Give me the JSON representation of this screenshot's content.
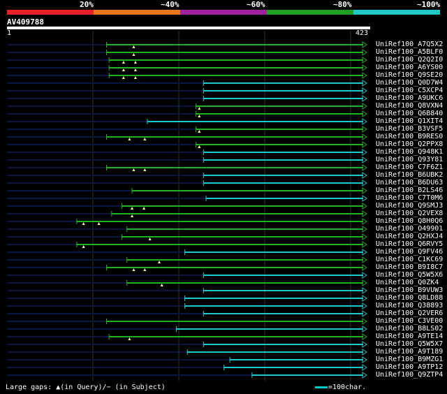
{
  "legend": [
    {
      "label": "20%",
      "color": "#e8202a"
    },
    {
      "label": "~40%",
      "color": "#e87820"
    },
    {
      "label": "~60%",
      "color": "#a020a0"
    },
    {
      "label": "~80%",
      "color": "#20a020"
    },
    {
      "label": "~100%",
      "color": "#20c8c8"
    }
  ],
  "query": {
    "name": "AV409788",
    "start": "1",
    "end": "423",
    "length": 423
  },
  "colors": {
    "green": "#1fb31f",
    "cyan": "#1fc8c8",
    "dark": "#0a1540",
    "grid": "#333333",
    "marker": "#ffffa0"
  },
  "hits": [
    {
      "name": "UniRef100_A7Q5X2",
      "start": 118,
      "color": "green",
      "markers": [
        150
      ]
    },
    {
      "name": "UniRef100_A5BLF0",
      "start": 118,
      "color": "green",
      "markers": [
        150
      ]
    },
    {
      "name": "UniRef100_Q2Q2I0",
      "start": 121,
      "color": "green",
      "markers": [
        138,
        152
      ]
    },
    {
      "name": "UniRef100_A6YS00",
      "start": 121,
      "color": "green",
      "markers": [
        138,
        152
      ]
    },
    {
      "name": "UniRef100_Q9SE20",
      "start": 121,
      "color": "green",
      "markers": [
        138,
        152
      ]
    },
    {
      "name": "UniRef100_Q0D7W4",
      "start": 232,
      "color": "cyan",
      "markers": []
    },
    {
      "name": "UniRef100_C5XCP4",
      "start": 232,
      "color": "cyan",
      "markers": []
    },
    {
      "name": "UniRef100_A9UKC6",
      "start": 232,
      "color": "cyan",
      "markers": []
    },
    {
      "name": "UniRef100_Q8VXN4",
      "start": 223,
      "color": "green",
      "markers": [
        227
      ]
    },
    {
      "name": "UniRef100_Q6B840",
      "start": 223,
      "color": "green",
      "markers": [
        227
      ]
    },
    {
      "name": "UniRef100_Q1XIT4",
      "start": 166,
      "color": "cyan",
      "markers": []
    },
    {
      "name": "UniRef100_B3VSF5",
      "start": 223,
      "color": "green",
      "markers": [
        227
      ]
    },
    {
      "name": "UniRef100_B9RES0",
      "start": 118,
      "color": "green",
      "markers": [
        145,
        163
      ]
    },
    {
      "name": "UniRef100_Q2PPX8",
      "start": 223,
      "color": "green",
      "markers": [
        227
      ]
    },
    {
      "name": "UniRef100_Q948K1",
      "start": 232,
      "color": "cyan",
      "markers": []
    },
    {
      "name": "UniRef100_Q93Y81",
      "start": 232,
      "color": "cyan",
      "markers": []
    },
    {
      "name": "UniRef100_C7F6Z1",
      "start": 118,
      "color": "green",
      "markers": [
        150,
        163
      ]
    },
    {
      "name": "UniRef100_B6UBK2",
      "start": 232,
      "color": "cyan",
      "markers": []
    },
    {
      "name": "UniRef100_B6DU63",
      "start": 232,
      "color": "cyan",
      "markers": []
    },
    {
      "name": "UniRef100_B2LS46",
      "start": 148,
      "color": "green",
      "markers": []
    },
    {
      "name": "UniRef100_C7T0M6",
      "start": 235,
      "color": "cyan",
      "markers": []
    },
    {
      "name": "UniRef100_Q9SMJ3",
      "start": 136,
      "color": "green",
      "markers": [
        148,
        162
      ]
    },
    {
      "name": "UniRef100_Q2VEX8",
      "start": 124,
      "color": "green",
      "markers": [
        148
      ]
    },
    {
      "name": "UniRef100_Q8H0Q6",
      "start": 83,
      "color": "green",
      "markers": [
        91,
        109
      ]
    },
    {
      "name": "UniRef100_O49901",
      "start": 142,
      "color": "green",
      "markers": []
    },
    {
      "name": "UniRef100_Q2HXJ4",
      "start": 136,
      "color": "green",
      "markers": [
        169
      ]
    },
    {
      "name": "UniRef100_Q6RVY5",
      "start": 83,
      "color": "green",
      "markers": [
        91
      ]
    },
    {
      "name": "UniRef100_Q9FV46",
      "start": 210,
      "color": "cyan",
      "markers": []
    },
    {
      "name": "UniRef100_C1KC69",
      "start": 142,
      "color": "green",
      "markers": [
        180
      ]
    },
    {
      "name": "UniRef100_B9I8C7",
      "start": 118,
      "color": "green",
      "markers": [
        150,
        163
      ]
    },
    {
      "name": "UniRef100_Q5W5X6",
      "start": 232,
      "color": "cyan",
      "markers": []
    },
    {
      "name": "UniRef100_Q0ZK4",
      "start": 142,
      "color": "green",
      "markers": [
        183
      ]
    },
    {
      "name": "UniRef100_B9VUW3",
      "start": 232,
      "color": "cyan",
      "markers": []
    },
    {
      "name": "UniRef100_Q8LD88",
      "start": 210,
      "color": "cyan",
      "markers": []
    },
    {
      "name": "UniRef100_Q38893",
      "start": 210,
      "color": "cyan",
      "markers": []
    },
    {
      "name": "UniRef100_Q2VER6",
      "start": 232,
      "color": "cyan",
      "markers": []
    },
    {
      "name": "UniRef100_C3VE00",
      "start": 118,
      "color": "green",
      "markers": []
    },
    {
      "name": "UniRef100_B8LS02",
      "start": 200,
      "color": "cyan",
      "markers": []
    },
    {
      "name": "UniRef100_A9TE14",
      "start": 121,
      "color": "green",
      "markers": [
        145
      ]
    },
    {
      "name": "UniRef100_Q5W5X7",
      "start": 232,
      "color": "cyan",
      "markers": []
    },
    {
      "name": "UniRef100_A9T189",
      "start": 213,
      "color": "cyan",
      "markers": []
    },
    {
      "name": "UniRef100_B9MZG1",
      "start": 263,
      "color": "cyan",
      "markers": []
    },
    {
      "name": "UniRef100_A9TP12",
      "start": 256,
      "color": "cyan",
      "markers": []
    },
    {
      "name": "UniRef100_Q9ZTP4",
      "start": 289,
      "color": "cyan",
      "markers": []
    }
  ],
  "footer": {
    "left": "Large gaps: ▲(in Query)/− (in Subject)",
    "right": "=100char."
  }
}
